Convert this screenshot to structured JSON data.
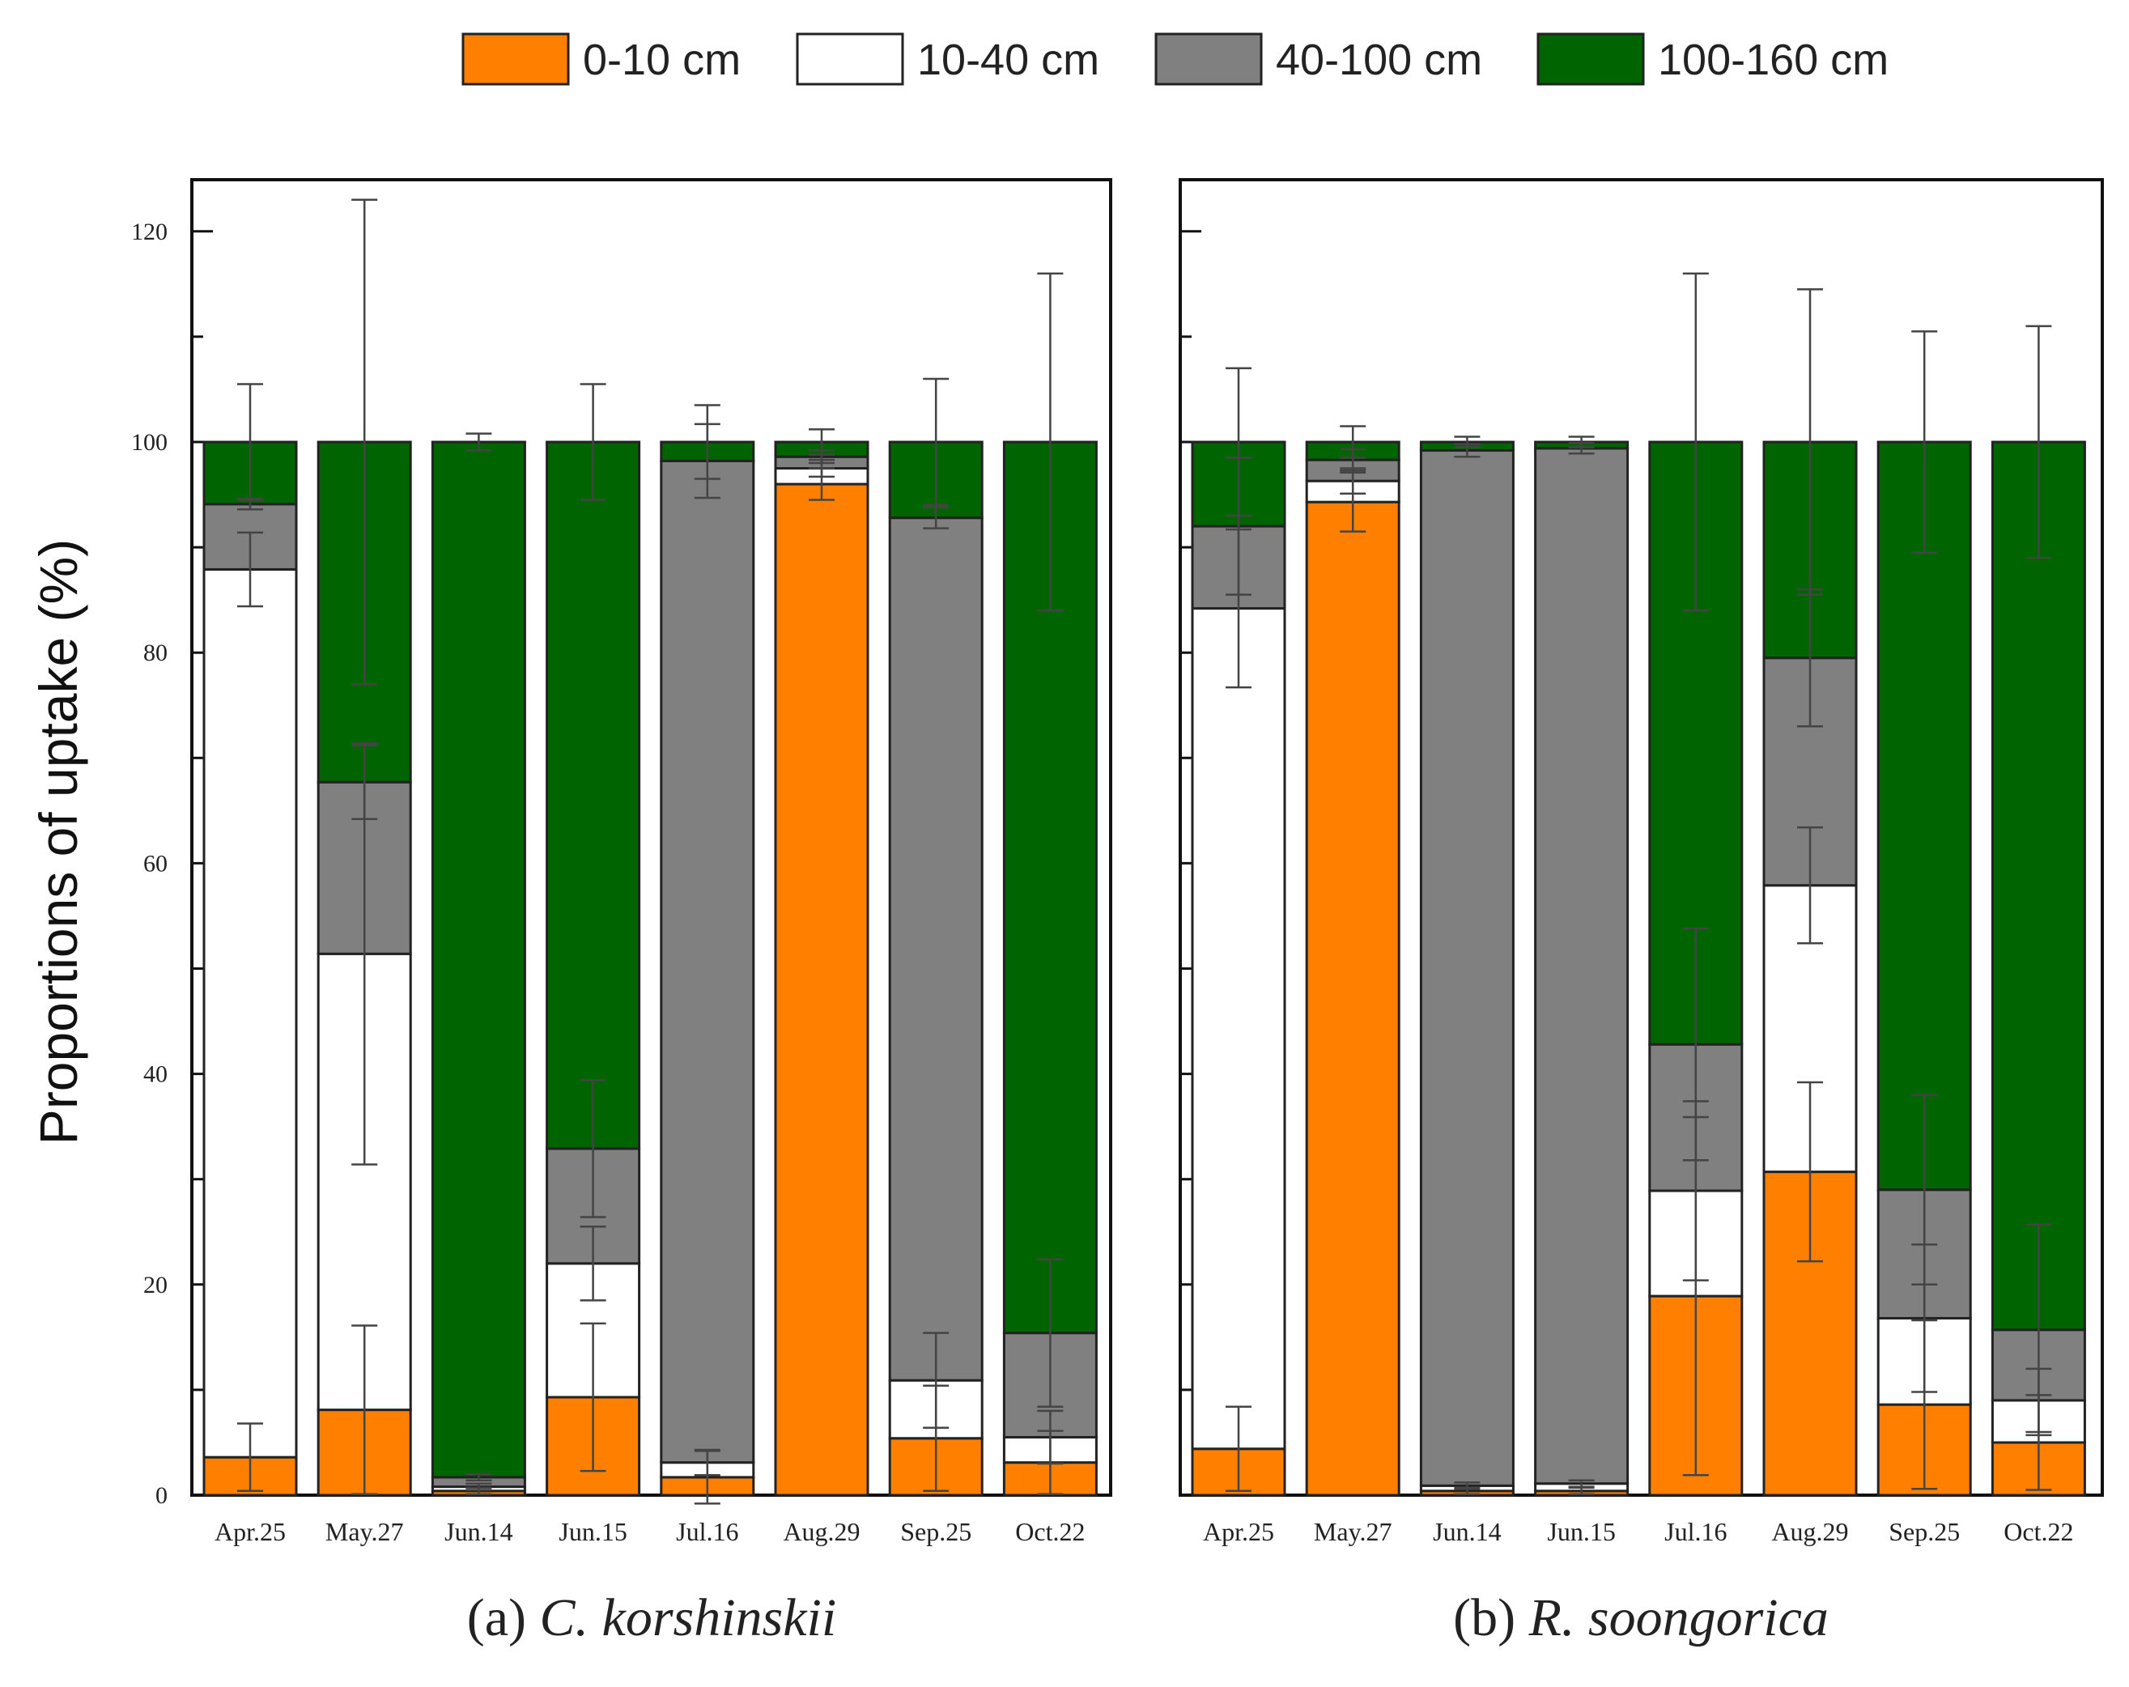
{
  "legend": [
    {
      "label": "0-10 cm",
      "color": "#ff8000"
    },
    {
      "label": "10-40 cm",
      "color": "#ffffff"
    },
    {
      "label": "40-100 cm",
      "color": "#808080"
    },
    {
      "label": "100-160 cm",
      "color": "#006400"
    }
  ],
  "ylabel": "Proportions of uptake (%)",
  "chart_data": [
    {
      "type": "bar",
      "stacked": true,
      "title_prefix": "(a) ",
      "title_species": "C. korshinskii",
      "ylabel": "Proportions of uptake (%)",
      "ylim": [
        0,
        125
      ],
      "yticks": [
        0,
        20,
        40,
        60,
        80,
        100,
        120
      ],
      "categories": [
        "Apr.25",
        "May.27",
        "Jun.14",
        "Jun.15",
        "Jul.16",
        "Aug.29",
        "Sep.25",
        "Oct.22"
      ],
      "series": [
        {
          "name": "0-10 cm",
          "color": "#ff8000",
          "values": [
            3.6,
            8.1,
            0.4,
            9.3,
            1.7,
            96.0,
            5.4,
            3.1
          ],
          "errors": [
            3.2,
            8.0,
            0.3,
            7.0,
            2.5,
            1.5,
            5.0,
            3.0
          ]
        },
        {
          "name": "10-40 cm",
          "color": "#ffffff",
          "values": [
            84.3,
            43.3,
            0.4,
            12.7,
            1.4,
            1.5,
            5.5,
            2.4
          ],
          "errors": [
            3.5,
            20.0,
            0.3,
            3.5,
            1.2,
            0.8,
            4.5,
            2.5
          ]
        },
        {
          "name": "40-100 cm",
          "color": "#808080",
          "values": [
            6.2,
            16.3,
            0.9,
            10.9,
            95.1,
            1.1,
            81.9,
            9.9
          ],
          "errors": [
            0.5,
            3.5,
            0.3,
            6.5,
            3.5,
            0.6,
            1.0,
            7.0
          ]
        },
        {
          "name": "100-160 cm",
          "color": "#006400",
          "values": [
            5.9,
            32.3,
            98.3,
            67.1,
            1.8,
            1.4,
            7.2,
            84.6
          ],
          "errors": [
            5.5,
            23.0,
            0.8,
            5.5,
            3.5,
            1.2,
            6.0,
            16.0
          ]
        }
      ]
    },
    {
      "type": "bar",
      "stacked": true,
      "title_prefix": "(b) ",
      "title_species": "R. soongorica",
      "ylim": [
        0,
        125
      ],
      "yticks": [
        0,
        20,
        40,
        60,
        80,
        100,
        120
      ],
      "categories": [
        "Apr.25",
        "May.27",
        "Jun.14",
        "Jun.15",
        "Jul.16",
        "Aug.29",
        "Sep.25",
        "Oct.22"
      ],
      "series": [
        {
          "name": "0-10 cm",
          "color": "#ff8000",
          "values": [
            4.4,
            94.3,
            0.4,
            0.4,
            18.9,
            30.7,
            8.6,
            5.0
          ],
          "errors": [
            4.0,
            2.8,
            0.3,
            0.3,
            17.0,
            8.5,
            8.0,
            4.5
          ]
        },
        {
          "name": "10-40 cm",
          "color": "#ffffff",
          "values": [
            79.8,
            2.0,
            0.5,
            0.7,
            10.0,
            27.2,
            8.2,
            4.0
          ],
          "errors": [
            7.5,
            1.2,
            0.3,
            0.3,
            8.5,
            5.5,
            7.0,
            3.0
          ]
        },
        {
          "name": "40-100 cm",
          "color": "#808080",
          "values": [
            7.8,
            2.0,
            98.3,
            98.3,
            13.9,
            21.6,
            12.2,
            6.7
          ],
          "errors": [
            6.5,
            1.0,
            0.6,
            0.5,
            11.0,
            6.5,
            9.0,
            10.0
          ]
        },
        {
          "name": "100-160 cm",
          "color": "#006400",
          "values": [
            8.0,
            1.7,
            0.8,
            0.6,
            57.2,
            20.5,
            71.0,
            84.3
          ],
          "errors": [
            7.0,
            1.5,
            0.5,
            0.5,
            16.0,
            14.5,
            10.5,
            11.0
          ]
        }
      ]
    }
  ]
}
